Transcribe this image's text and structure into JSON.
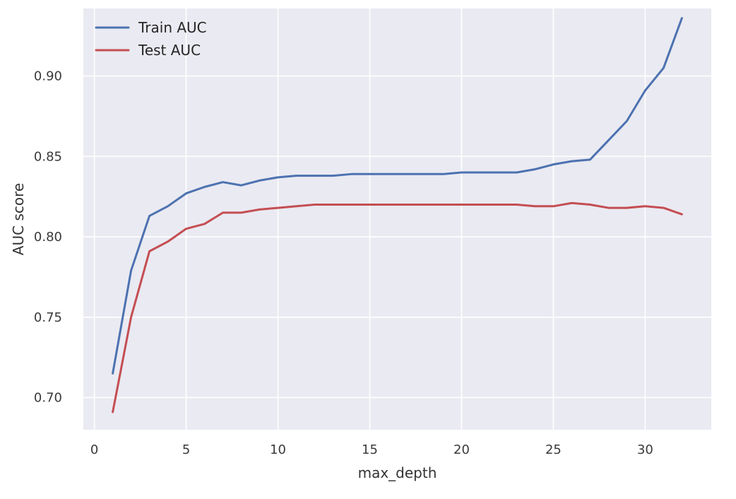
{
  "chart_data": {
    "type": "line",
    "title": "",
    "xlabel": "max_depth",
    "ylabel": "AUC score",
    "xlim": [
      -0.6,
      33.6
    ],
    "ylim": [
      0.68,
      0.942
    ],
    "x_ticks": [
      0,
      5,
      10,
      15,
      20,
      25,
      30
    ],
    "y_ticks": [
      0.7,
      0.75,
      0.8,
      0.85,
      0.9
    ],
    "x_tick_labels": [
      "0",
      "5",
      "10",
      "15",
      "20",
      "25",
      "30"
    ],
    "y_tick_labels": [
      "0.70",
      "0.75",
      "0.80",
      "0.85",
      "0.90"
    ],
    "grid": true,
    "legend_position": "top-left",
    "background": "#EAEAF2",
    "x": [
      1,
      2,
      3,
      4,
      5,
      6,
      7,
      8,
      9,
      10,
      11,
      12,
      13,
      14,
      15,
      16,
      17,
      18,
      19,
      20,
      21,
      22,
      23,
      24,
      25,
      26,
      27,
      28,
      29,
      30,
      31,
      32
    ],
    "series": [
      {
        "name": "Train AUC",
        "color": "#4C72B0",
        "values": [
          0.715,
          0.779,
          0.813,
          0.819,
          0.827,
          0.831,
          0.834,
          0.832,
          0.835,
          0.837,
          0.838,
          0.838,
          0.838,
          0.839,
          0.839,
          0.839,
          0.839,
          0.839,
          0.839,
          0.84,
          0.84,
          0.84,
          0.84,
          0.842,
          0.845,
          0.847,
          0.848,
          0.86,
          0.872,
          0.891,
          0.905,
          0.936
        ]
      },
      {
        "name": "Test AUC",
        "color": "#C44E52",
        "values": [
          0.691,
          0.75,
          0.791,
          0.797,
          0.805,
          0.808,
          0.815,
          0.815,
          0.817,
          0.818,
          0.819,
          0.82,
          0.82,
          0.82,
          0.82,
          0.82,
          0.82,
          0.82,
          0.82,
          0.82,
          0.82,
          0.82,
          0.82,
          0.819,
          0.819,
          0.821,
          0.82,
          0.818,
          0.818,
          0.819,
          0.818,
          0.814
        ]
      }
    ]
  }
}
